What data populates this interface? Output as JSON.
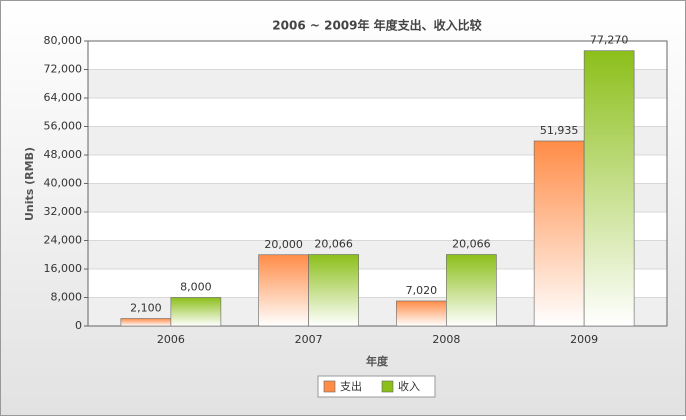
{
  "chart_data": {
    "type": "bar",
    "title": "2006 ~ 2009年 年度支出、收入比较",
    "x_label": "年度",
    "y_label": "Units (RMB)",
    "categories": [
      "2006",
      "2007",
      "2008",
      "2009"
    ],
    "series": [
      {
        "name": "支出",
        "color": "#ff8c47",
        "values": [
          2100,
          20000,
          7020,
          51935
        ],
        "value_labels": [
          "2,100",
          "20,000",
          "7,020",
          "51,935"
        ]
      },
      {
        "name": "收入",
        "color": "#8cbf1a",
        "values": [
          8000,
          20066,
          20066,
          77270
        ],
        "value_labels": [
          "8,000",
          "20,066",
          "20,066",
          "77,270"
        ]
      }
    ],
    "ylim": [
      0,
      80000
    ],
    "yticks": [
      0,
      {
        "value": 8000,
        "label": "8,000"
      },
      {
        "value": 16000,
        "label": "16,000"
      },
      {
        "value": 24000,
        "label": "24,000"
      },
      {
        "value": 32000,
        "label": "32,000"
      },
      {
        "value": 40000,
        "label": "40,000"
      },
      {
        "value": 48000,
        "label": "48,000"
      },
      {
        "value": 56000,
        "label": "56,000"
      },
      {
        "value": 64000,
        "label": "64,000"
      },
      {
        "value": 72000,
        "label": "72,000"
      },
      {
        "value": 80000,
        "label": "80,000"
      }
    ],
    "grid": true,
    "legend": "bottom"
  }
}
